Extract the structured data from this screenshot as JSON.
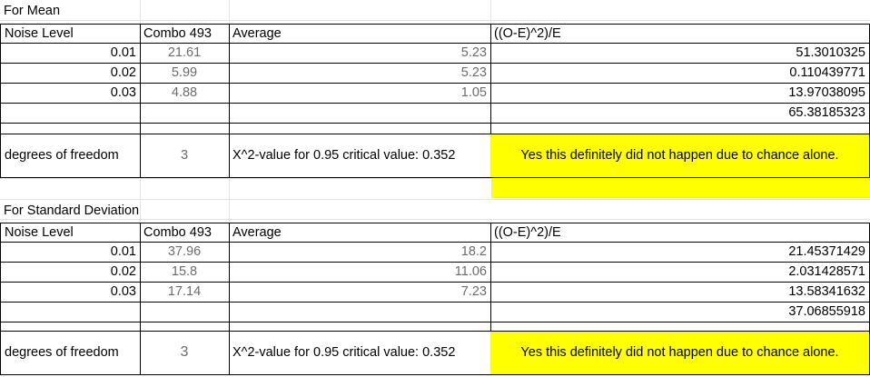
{
  "mean": {
    "title": "For Mean",
    "headers": [
      "Noise Level",
      "Combo 493",
      "Average",
      "((O-E)^2)/E"
    ],
    "rows": [
      {
        "noise": "0.01",
        "combo": "21.61",
        "average": "5.23",
        "chi": "51.3010325"
      },
      {
        "noise": "0.02",
        "combo": "5.99",
        "average": "5.23",
        "chi": "0.110439771"
      },
      {
        "noise": "0.03",
        "combo": "4.88",
        "average": "1.05",
        "chi": "13.97038095"
      }
    ],
    "total": "65.38185323",
    "df_label": "degrees of freedom",
    "df_value": "3",
    "critical_label": "X^2-value for 0.95 critical value: 0.352",
    "conclusion": "Yes this definitely did not happen due to chance alone."
  },
  "sd": {
    "title": "For Standard Deviation",
    "headers": [
      "Noise Level",
      "Combo 493",
      "Average",
      "((O-E)^2)/E"
    ],
    "rows": [
      {
        "noise": "0.01",
        "combo": "37.96",
        "average": "18.2",
        "chi": "21.45371429"
      },
      {
        "noise": "0.02",
        "combo": "15.8",
        "average": "11.06",
        "chi": "2.031428571"
      },
      {
        "noise": "0.03",
        "combo": "17.14",
        "average": "7.23",
        "chi": "13.58341632"
      }
    ],
    "total": "37.06855918",
    "df_label": "degrees of freedom",
    "df_value": "3",
    "critical_label": "X^2-value for 0.95 critical value: 0.352",
    "conclusion": "Yes this definitely did not happen due to chance alone."
  }
}
